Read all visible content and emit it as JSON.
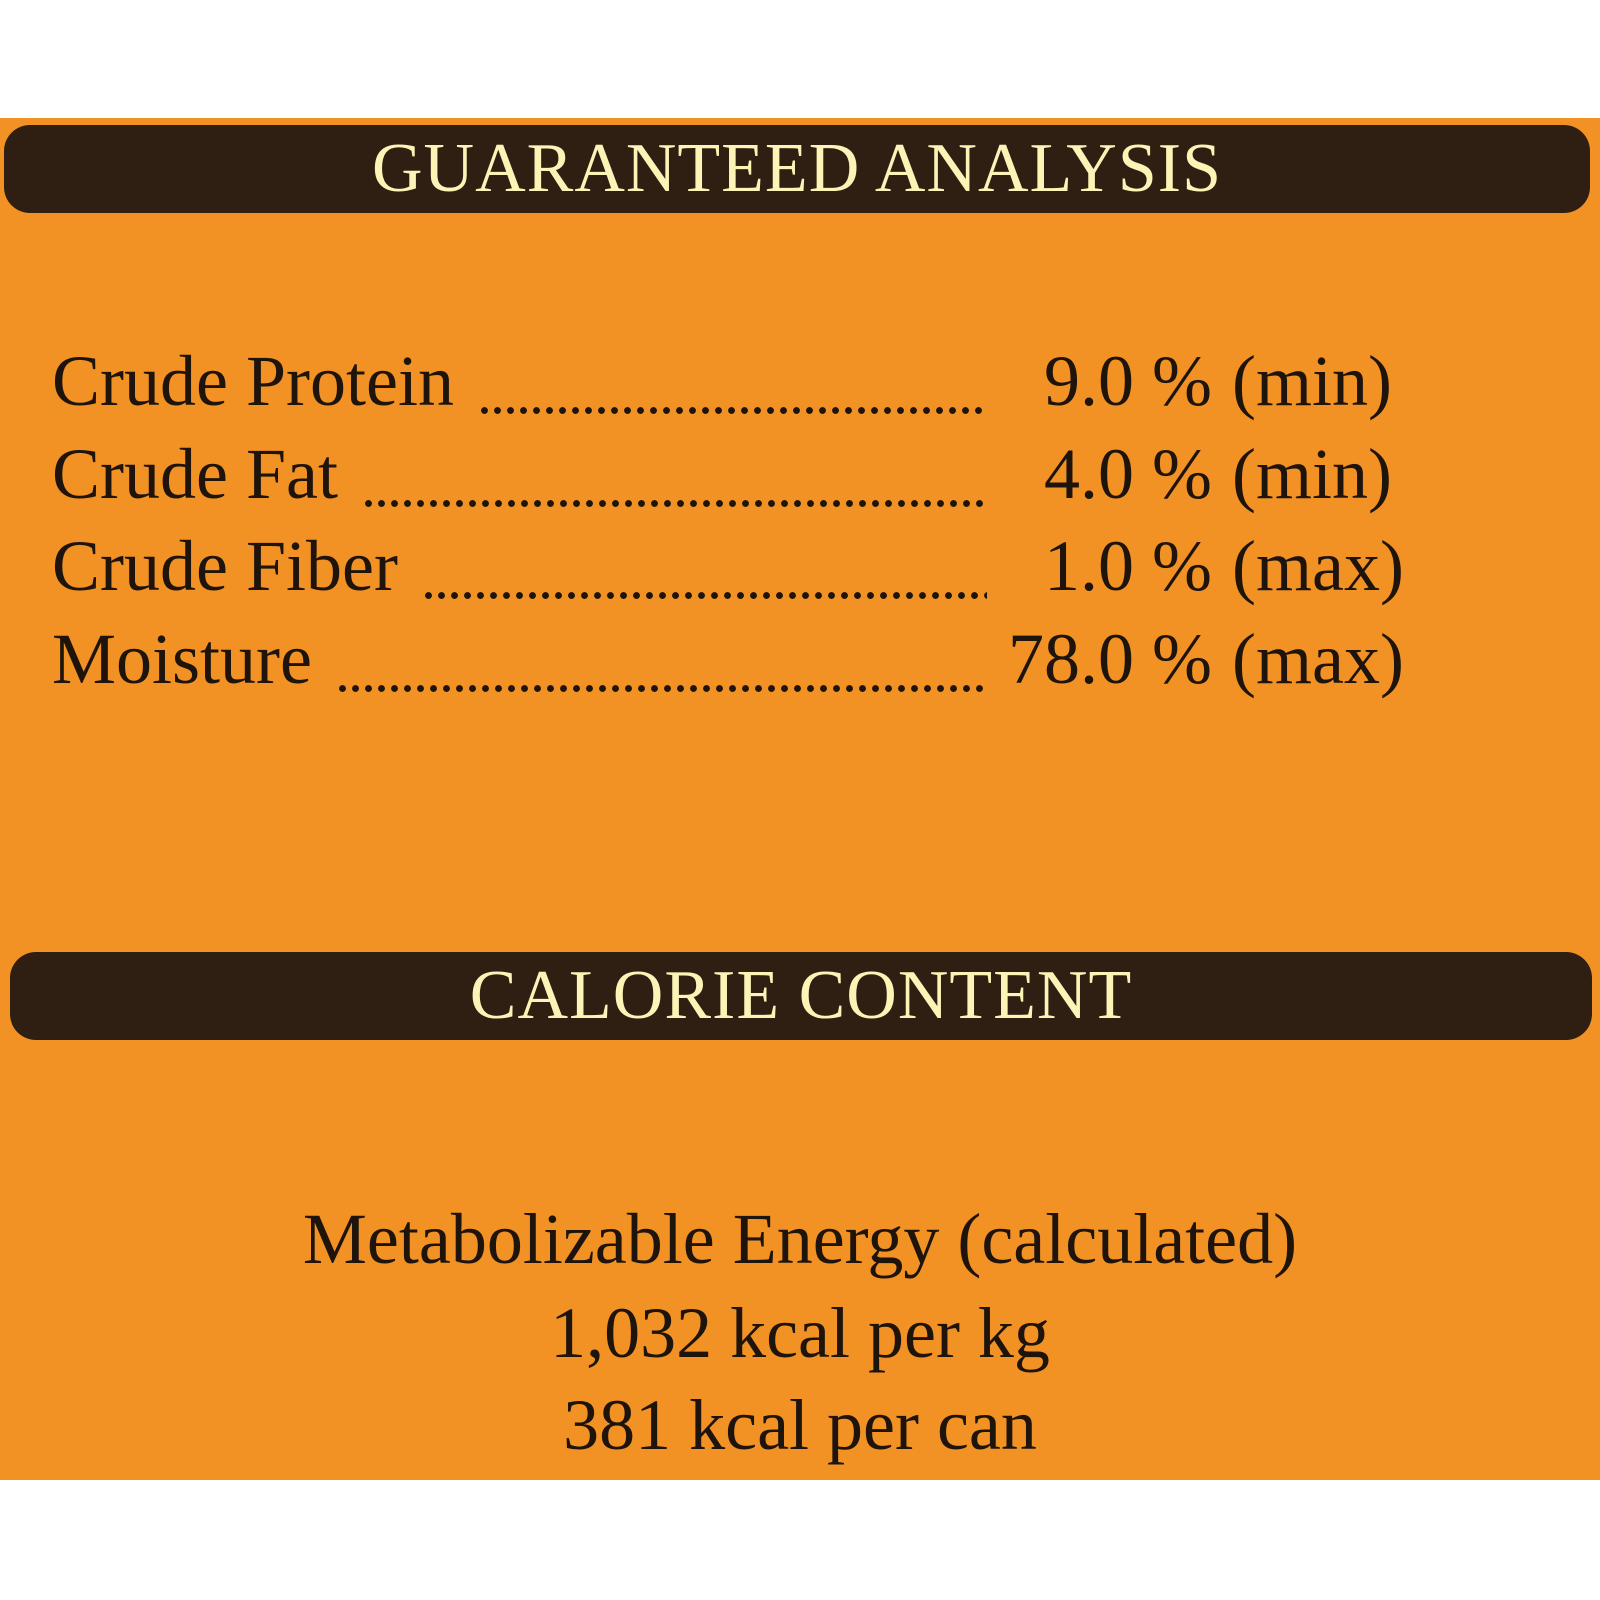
{
  "guaranteed_analysis": {
    "title": "GUARANTEED ANALYSIS",
    "rows": [
      {
        "label": "Crude Protein",
        "value": "9.0 %",
        "qualifier": "(min)"
      },
      {
        "label": "Crude Fat",
        "value": "4.0 %",
        "qualifier": "(min)"
      },
      {
        "label": "Crude Fiber",
        "value": "1.0 %",
        "qualifier": "(max)"
      },
      {
        "label": "Moisture",
        "value": "78.0 %",
        "qualifier": "(max)"
      }
    ]
  },
  "calorie_content": {
    "title": "CALORIE CONTENT",
    "lines": [
      "Metabolizable Energy (calculated)",
      "1,032 kcal per kg",
      "381 kcal per can"
    ]
  }
}
